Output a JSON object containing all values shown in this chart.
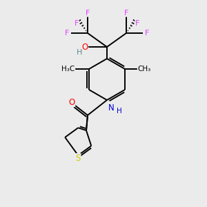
{
  "background_color": "#ebebeb",
  "bond_color": "#000000",
  "atom_colors": {
    "F": "#e040fb",
    "O": "#ff0000",
    "N": "#0000cc",
    "S": "#cccc00",
    "C": "#000000",
    "H": "#5a8a8a"
  }
}
